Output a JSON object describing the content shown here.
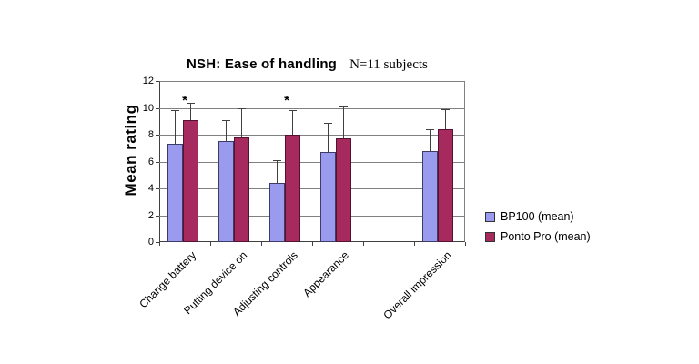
{
  "header": {
    "title": "NSH: Ease of handling",
    "subtitle": "N=11 subjects"
  },
  "chart_data": {
    "type": "bar",
    "title": "NSH: Ease of handling",
    "subtitle": "N=11 subjects",
    "xlabel": "",
    "ylabel": "Mean rating",
    "ylim": [
      0,
      12
    ],
    "ytick_step": 2,
    "yticks": [
      0,
      2,
      4,
      6,
      8,
      10,
      12
    ],
    "grid": true,
    "legend_position": "right",
    "categories": [
      "Change battery",
      "Putting device on",
      "Adjusting controls",
      "Appearance",
      "Overall impression"
    ],
    "empty_slot_after_index": 3,
    "series": [
      {
        "name": "BP100 (mean)",
        "color": "#9a9aee",
        "border_color": "#3c3c66",
        "values": [
          7.3,
          7.5,
          4.4,
          6.7,
          6.8
        ],
        "error_up": [
          2.5,
          1.6,
          1.7,
          2.2,
          1.6
        ]
      },
      {
        "name": "Ponto Pro (mean)",
        "color": "#a62a5e",
        "border_color": "#551230",
        "values": [
          9.1,
          7.8,
          8.0,
          7.7,
          8.4
        ],
        "error_up": [
          1.3,
          2.2,
          1.8,
          2.4,
          1.5
        ]
      }
    ],
    "annotations": [
      {
        "text": "*",
        "category_index": 0,
        "meaning": "significant difference"
      },
      {
        "text": "*",
        "category_index": 2,
        "meaning": "significant difference"
      }
    ],
    "colors": {
      "gridline": "#808080",
      "axis": "#404040",
      "error_bar": "#404040",
      "plot_background": "#ffffff"
    }
  }
}
